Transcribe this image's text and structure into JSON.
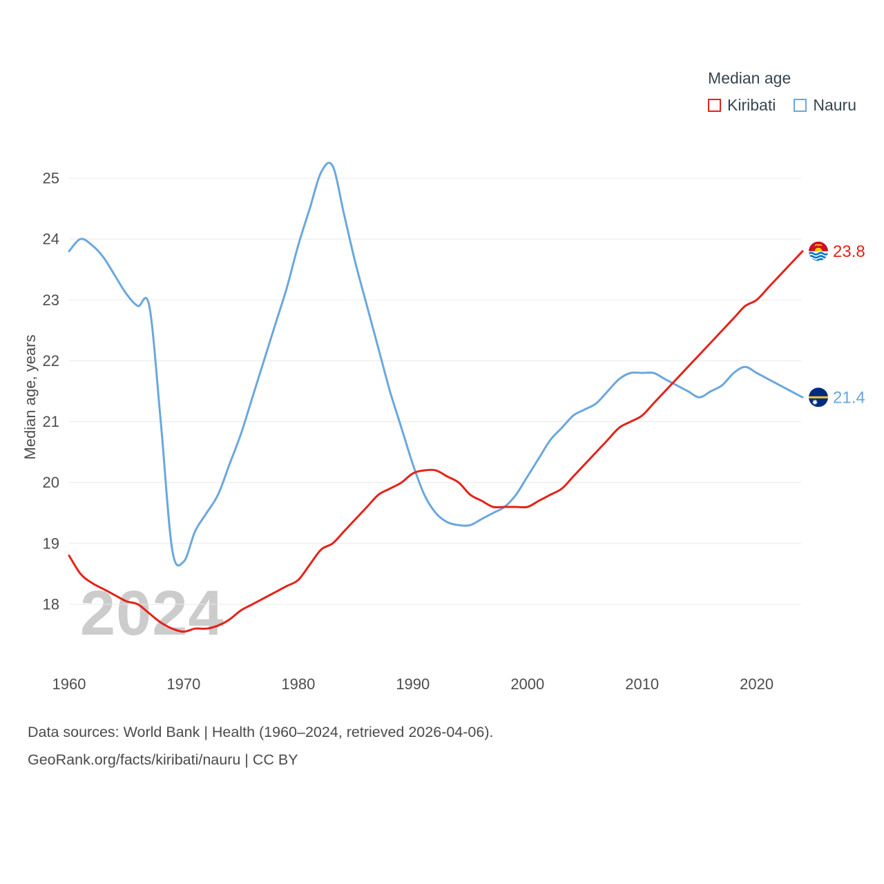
{
  "legend": {
    "title": "Median age",
    "series": [
      {
        "label": "Kiribati",
        "color": "#e42218"
      },
      {
        "label": "Nauru",
        "color": "#6aa7dd"
      }
    ]
  },
  "watermark": "2024",
  "y_axis_label": "Median age, years",
  "footer": {
    "line1": "Data sources: World Bank | Health (1960–2024, retrieved 2026-04-06).",
    "line2": "GeoRank.org/facts/kiribati/nauru | CC BY"
  },
  "chart_data": {
    "type": "line",
    "title": "Median age",
    "ylabel": "Median age, years",
    "xlim": [
      1960,
      2024
    ],
    "ylim": [
      17.4,
      25.4
    ],
    "x_start": 1960,
    "x_step": 1,
    "x_ticks": [
      1960,
      1970,
      1980,
      1990,
      2000,
      2010,
      2020
    ],
    "y_ticks": [
      18,
      19,
      20,
      21,
      22,
      23,
      24,
      25
    ],
    "grid": "horizontal",
    "legend_position": "top-right",
    "series": [
      {
        "name": "Kiribati",
        "color": "#e42218",
        "end_label": "23.8",
        "end_value": 23.8,
        "values": [
          18.8,
          18.5,
          18.35,
          18.25,
          18.15,
          18.05,
          18.0,
          17.85,
          17.7,
          17.6,
          17.55,
          17.6,
          17.6,
          17.65,
          17.75,
          17.9,
          18.0,
          18.1,
          18.2,
          18.3,
          18.4,
          18.65,
          18.9,
          19.0,
          19.2,
          19.4,
          19.6,
          19.8,
          19.9,
          20.0,
          20.15,
          20.2,
          20.2,
          20.1,
          20.0,
          19.8,
          19.7,
          19.6,
          19.6,
          19.6,
          19.6,
          19.7,
          19.8,
          19.9,
          20.1,
          20.3,
          20.5,
          20.7,
          20.9,
          21.0,
          21.1,
          21.3,
          21.5,
          21.7,
          21.9,
          22.1,
          22.3,
          22.5,
          22.7,
          22.9,
          23.0,
          23.2,
          23.4,
          23.6,
          23.8
        ]
      },
      {
        "name": "Nauru",
        "color": "#6aa7dd",
        "end_label": "21.4",
        "end_value": 21.4,
        "values": [
          23.8,
          24.0,
          23.9,
          23.7,
          23.4,
          23.1,
          22.9,
          22.9,
          21.0,
          18.9,
          18.7,
          19.2,
          19.5,
          19.8,
          20.3,
          20.8,
          21.4,
          22.0,
          22.6,
          23.2,
          23.9,
          24.5,
          25.1,
          25.2,
          24.4,
          23.6,
          22.9,
          22.2,
          21.5,
          20.9,
          20.3,
          19.8,
          19.5,
          19.35,
          19.3,
          19.3,
          19.4,
          19.5,
          19.6,
          19.8,
          20.1,
          20.4,
          20.7,
          20.9,
          21.1,
          21.2,
          21.3,
          21.5,
          21.7,
          21.8,
          21.8,
          21.8,
          21.7,
          21.6,
          21.5,
          21.4,
          21.5,
          21.6,
          21.8,
          21.9,
          21.8,
          21.7,
          21.6,
          21.5,
          21.4
        ]
      }
    ]
  }
}
